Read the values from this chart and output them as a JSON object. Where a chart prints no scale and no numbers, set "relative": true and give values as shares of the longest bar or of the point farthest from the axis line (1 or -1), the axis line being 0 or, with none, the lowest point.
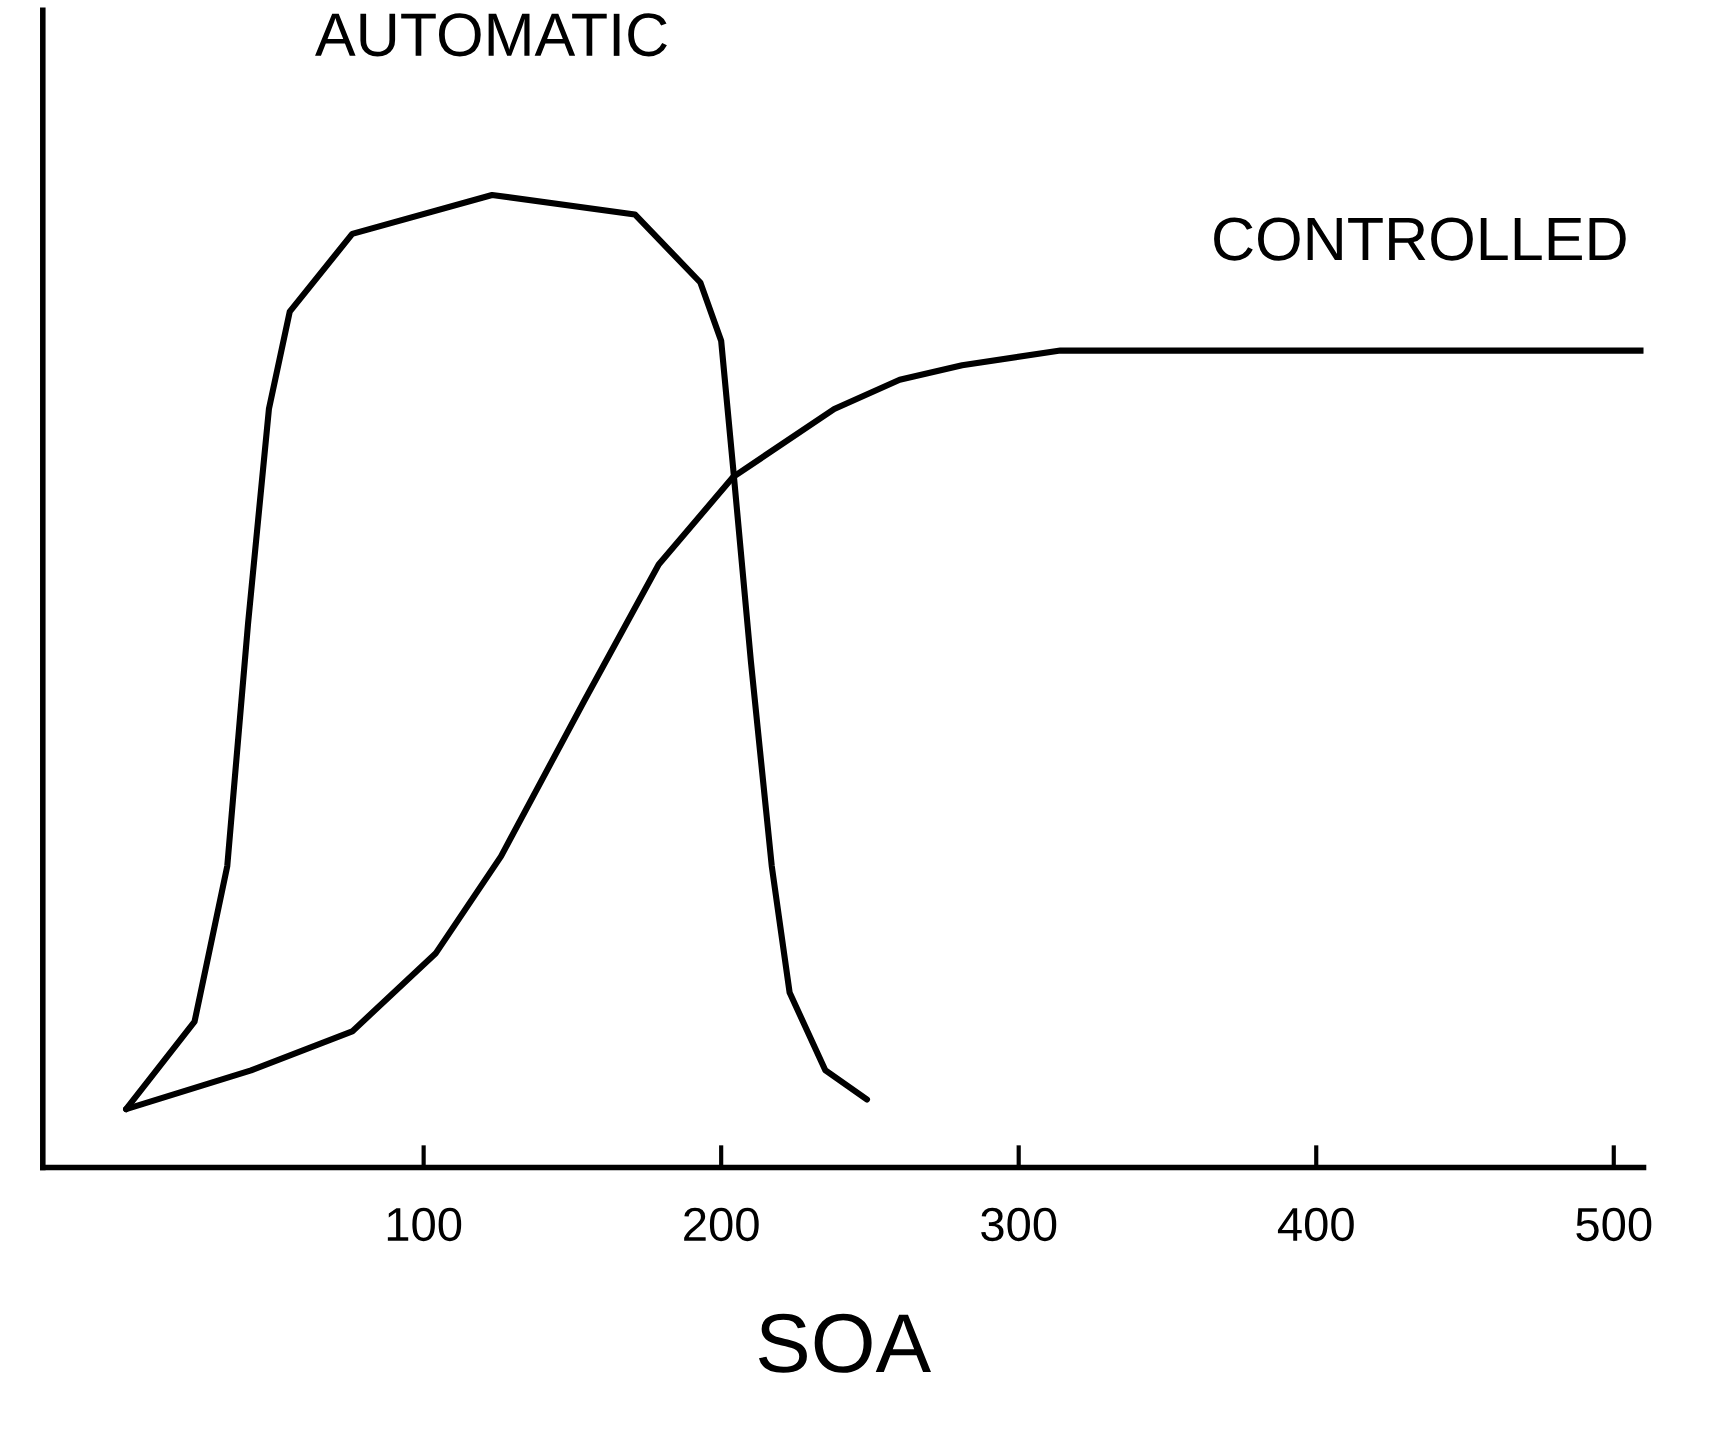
{
  "chart_data": {
    "type": "line",
    "relative": true,
    "xlabel": "SOA",
    "xlim": [
      -28,
      510
    ],
    "xticks": [
      100,
      200,
      300,
      400,
      500
    ],
    "grid": false,
    "legend": false,
    "marker": "none",
    "line_style": "solid",
    "series": [
      {
        "name": "AUTOMATIC",
        "color": "#000000",
        "x": [
          0,
          23,
          34,
          41,
          48,
          55,
          76,
          123,
          171,
          193,
          200,
          204,
          210,
          217,
          223,
          235,
          249
        ],
        "values": [
          0.06,
          0.15,
          0.31,
          0.56,
          0.78,
          0.88,
          0.96,
          1.0,
          0.98,
          0.91,
          0.85,
          0.72,
          0.52,
          0.31,
          0.18,
          0.1,
          0.07
        ]
      },
      {
        "name": "CONTROLLED",
        "color": "#000000",
        "x": [
          0,
          42,
          76,
          104,
          126,
          154,
          179,
          204,
          238,
          260,
          281,
          314,
          400,
          510
        ],
        "values": [
          0.06,
          0.1,
          0.14,
          0.22,
          0.32,
          0.48,
          0.62,
          0.71,
          0.78,
          0.81,
          0.825,
          0.84,
          0.84,
          0.84
        ]
      }
    ]
  }
}
